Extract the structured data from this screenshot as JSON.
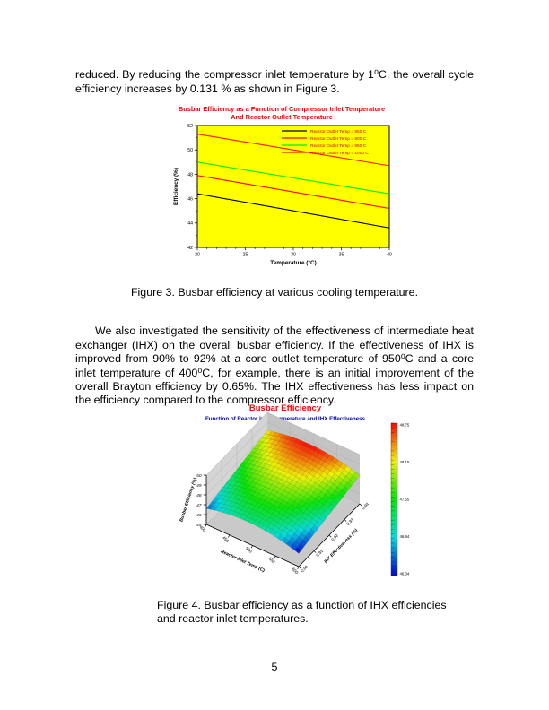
{
  "page": {
    "number": "5"
  },
  "paragraph1": "reduced. By reducing the compressor inlet temperature by 1⁰C, the overall cycle efficiency increases by 0.131 % as shown in Figure 3.",
  "paragraph2": "We also investigated the sensitivity of the effectiveness of intermediate heat exchanger (IHX) on the overall busbar efficiency. If the effectiveness of IHX is improved from 90% to 92% at a core outlet temperature of 950⁰C and a core inlet temperature of 400⁰C, for example, there is an initial improvement of the overall Brayton efficiency by 0.65%. The IHX effectiveness has less impact on the efficiency compared to the compressor efficiency.",
  "figure3_caption": "Figure 3. Busbar efficiency at various cooling temperature.",
  "figure4_caption_line1": "Figure 4. Busbar efficiency as a function of IHX efficiencies",
  "figure4_caption_line2": "and reactor inlet temperatures.",
  "chart_data": [
    {
      "type": "line",
      "title_line1": "Busbar Efficiency as a Function of Compressor Inlet Temperature",
      "title_line2": "And Reactor Outlet Temperature",
      "title_color": "#FF0000",
      "xlabel": "Temperature (°C)",
      "ylabel": "Efficiency (%)",
      "xlim": [
        20,
        40
      ],
      "ylim": [
        42,
        52
      ],
      "xticks": [
        20,
        25,
        30,
        35,
        40
      ],
      "yticks": [
        42,
        44,
        46,
        48,
        50,
        52
      ],
      "plot_bg": "#FFFF00",
      "grid": false,
      "legend_position": "top-right",
      "legend_text_color": "#CC0000",
      "series": [
        {
          "name": "Reactor Outlet Temp = 850 C",
          "color": "#000000",
          "x": [
            20,
            40
          ],
          "y": [
            46.4,
            43.6
          ]
        },
        {
          "name": "Reactor Outlet Temp = 900 C",
          "color": "#FF0000",
          "x": [
            20,
            40
          ],
          "y": [
            47.9,
            45.2
          ]
        },
        {
          "name": "Reactor Outlet Temp = 950 C",
          "color": "#00EE00",
          "x": [
            20,
            40
          ],
          "y": [
            49.0,
            46.4
          ]
        },
        {
          "name": "Reactor Outlet Temp = 1000 C",
          "color": "#FF1500",
          "x": [
            20,
            40
          ],
          "y": [
            51.3,
            48.7
          ]
        }
      ]
    },
    {
      "type": "surface3d",
      "title": "Busbar Efficiency",
      "title_color": "#FF0000",
      "subtitle": "Function of Reactor Inlet Temperature and IHX Effectiveness",
      "subtitle_color": "#0000BB",
      "xlabel": "Reactor Inlet Temp (C)",
      "ylabel": "IHX Effectiveness (%)",
      "zlabel": "Busbar Efficiency (%)",
      "xticks": [
        "400",
        "450",
        "500",
        "550",
        "600"
      ],
      "yticks": [
        "0.90",
        "0.91",
        "0.92",
        "0.93",
        "0.94"
      ],
      "zticks": [
        "45",
        "46",
        "47",
        "48",
        "49",
        "50"
      ],
      "zlim": [
        45,
        50
      ],
      "z_range": [
        46.34,
        48.75
      ],
      "colorbar_labels": [
        "48.75",
        "48.15",
        "47.55",
        "46.94",
        "46.34"
      ],
      "x_values": [
        400,
        425,
        450,
        475,
        500,
        525,
        550,
        575,
        600
      ],
      "y_values": [
        0.9,
        0.905,
        0.91,
        0.915,
        0.92,
        0.925,
        0.93,
        0.935,
        0.94
      ],
      "z_grid": [
        [
          46.62,
          46.9,
          47.09,
          47.18,
          47.19,
          47.11,
          46.94,
          46.68,
          46.33
        ],
        [
          46.81,
          47.09,
          47.28,
          47.37,
          47.39,
          47.31,
          47.14,
          46.88,
          46.53
        ],
        [
          47.01,
          47.29,
          47.48,
          47.57,
          47.58,
          47.5,
          47.33,
          47.07,
          46.72
        ],
        [
          47.2,
          47.48,
          47.67,
          47.76,
          47.77,
          47.69,
          47.52,
          47.26,
          46.91
        ],
        [
          47.39,
          47.67,
          47.86,
          47.95,
          47.97,
          47.89,
          47.72,
          47.45,
          47.11
        ],
        [
          47.59,
          47.87,
          48.06,
          48.15,
          48.16,
          48.08,
          47.91,
          47.65,
          47.3
        ],
        [
          47.78,
          48.06,
          48.25,
          48.34,
          48.35,
          48.27,
          48.1,
          47.84,
          47.49
        ],
        [
          47.97,
          48.25,
          48.44,
          48.53,
          48.55,
          48.47,
          48.3,
          48.04,
          47.69
        ],
        [
          48.17,
          48.45,
          48.64,
          48.73,
          48.74,
          48.66,
          48.49,
          48.23,
          47.88
        ]
      ]
    }
  ]
}
